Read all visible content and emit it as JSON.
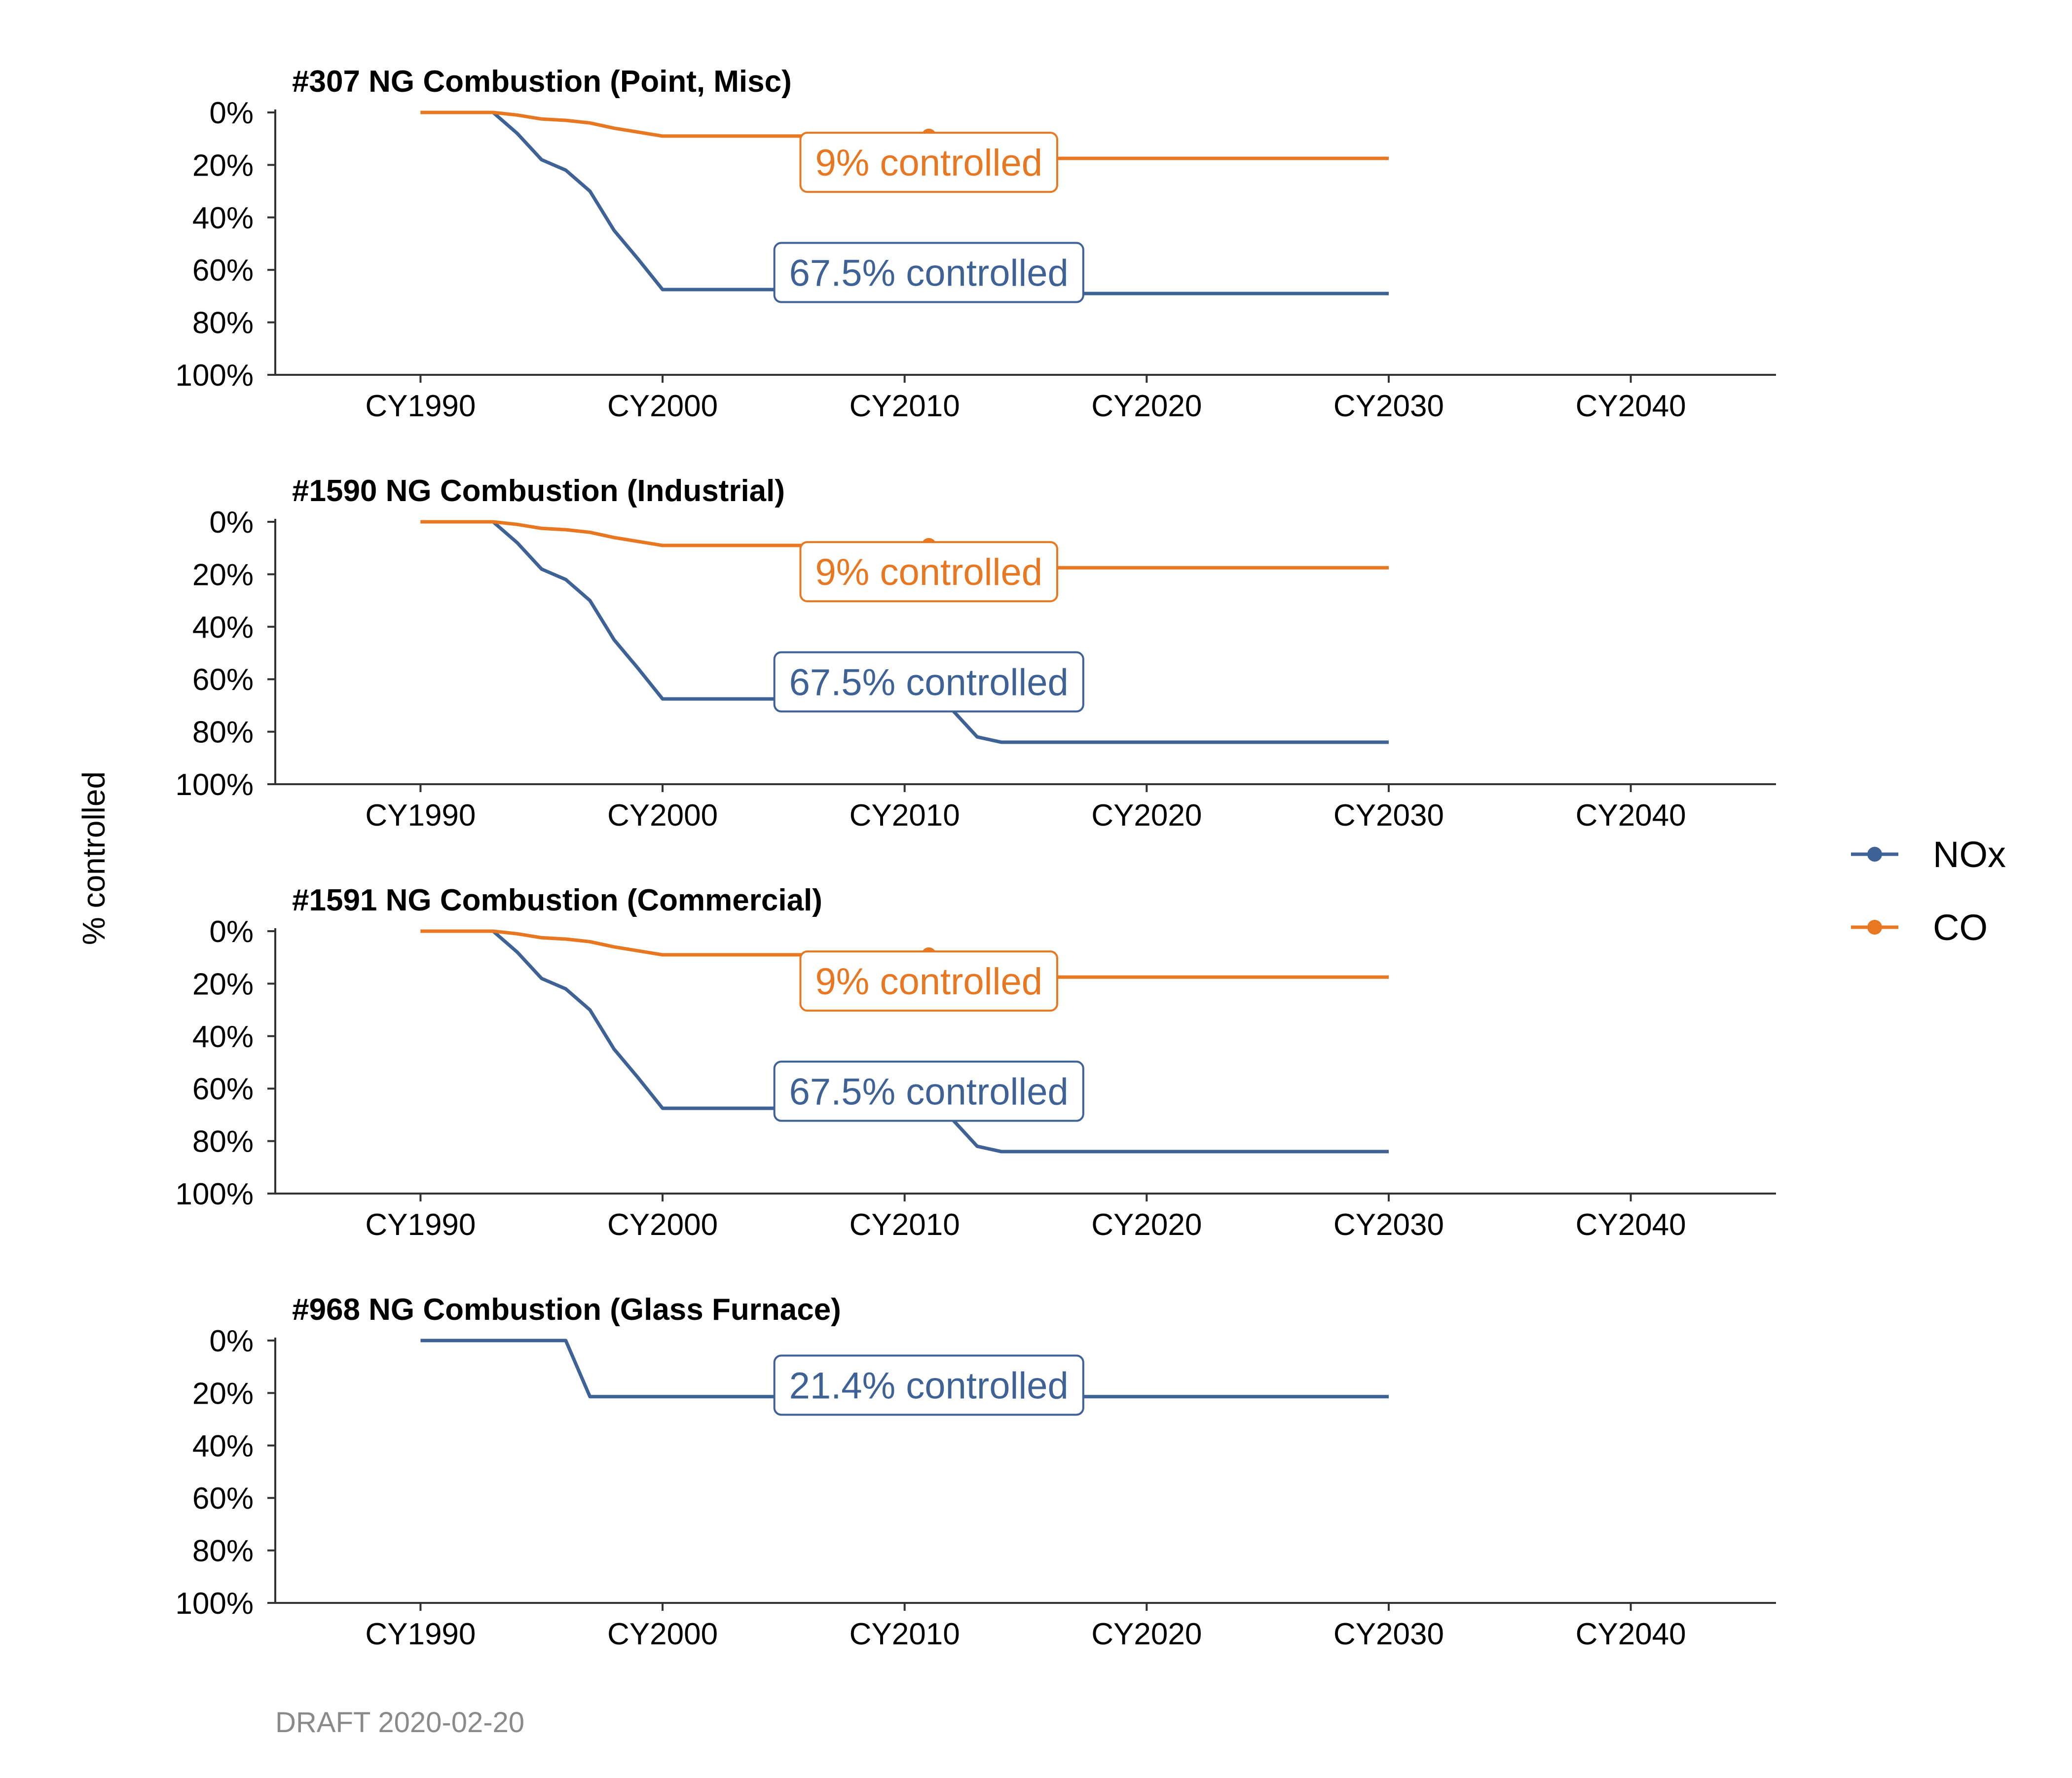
{
  "y_axis_label": "% controlled",
  "footer": "DRAFT 2020-02-20",
  "colors": {
    "NOx": "#3F6296",
    "CO": "#E87722"
  },
  "legend": {
    "position": "right",
    "items": [
      {
        "name": "NOx",
        "color": "#3F6296"
      },
      {
        "name": "CO",
        "color": "#E87722"
      }
    ]
  },
  "chart_data": [
    {
      "type": "line",
      "title": "#307 NG Combustion (Point, Misc)",
      "xlabel": "",
      "ylabel": "% controlled",
      "xlim": [
        1984,
        2046
      ],
      "ylim": [
        0,
        100
      ],
      "y_reversed": true,
      "x_ticks": [
        1990,
        2000,
        2010,
        2020,
        2030,
        2040
      ],
      "x_tick_labels": [
        "CY1990",
        "CY2000",
        "CY2010",
        "CY2020",
        "CY2030",
        "CY2040"
      ],
      "y_ticks": [
        0,
        20,
        40,
        60,
        80,
        100
      ],
      "y_tick_labels": [
        "0%",
        "20%",
        "40%",
        "60%",
        "80%",
        "100%"
      ],
      "series": [
        {
          "name": "NOx",
          "x": [
            1990,
            1993,
            1994,
            1995,
            1996,
            1997,
            1998,
            1999,
            2000,
            2011,
            2012,
            2030
          ],
          "y": [
            0,
            0,
            8,
            18,
            22,
            30,
            45,
            56,
            67.5,
            67.5,
            69,
            69
          ]
        },
        {
          "name": "CO",
          "x": [
            1990,
            1993,
            1994,
            1995,
            1996,
            1997,
            1998,
            1999,
            2000,
            2011,
            2012,
            2030
          ],
          "y": [
            0,
            0,
            1,
            2.5,
            3,
            4,
            6,
            7.5,
            9,
            9,
            17.5,
            17.5
          ]
        }
      ],
      "markers": [
        {
          "series": "CO",
          "x": 2011,
          "y": 9
        }
      ],
      "annotations": [
        {
          "series": "CO",
          "text": "9% controlled",
          "x": 2011,
          "y": 19
        },
        {
          "series": "NOx",
          "text": "67.5% controlled",
          "x": 2011,
          "y": 61
        }
      ]
    },
    {
      "type": "line",
      "title": "#1590 NG Combustion (Industrial)",
      "xlabel": "",
      "ylabel": "% controlled",
      "xlim": [
        1984,
        2046
      ],
      "ylim": [
        0,
        100
      ],
      "y_reversed": true,
      "x_ticks": [
        1990,
        2000,
        2010,
        2020,
        2030,
        2040
      ],
      "x_tick_labels": [
        "CY1990",
        "CY2000",
        "CY2010",
        "CY2020",
        "CY2030",
        "CY2040"
      ],
      "y_ticks": [
        0,
        20,
        40,
        60,
        80,
        100
      ],
      "y_tick_labels": [
        "0%",
        "20%",
        "40%",
        "60%",
        "80%",
        "100%"
      ],
      "series": [
        {
          "name": "NOx",
          "x": [
            1990,
            1993,
            1994,
            1995,
            1996,
            1997,
            1998,
            1999,
            2000,
            2011,
            2012,
            2013,
            2014,
            2030
          ],
          "y": [
            0,
            0,
            8,
            18,
            22,
            30,
            45,
            56,
            67.5,
            67.5,
            72,
            82,
            84,
            84
          ]
        },
        {
          "name": "CO",
          "x": [
            1990,
            1993,
            1994,
            1995,
            1996,
            1997,
            1998,
            1999,
            2000,
            2011,
            2012,
            2030
          ],
          "y": [
            0,
            0,
            1,
            2.5,
            3,
            4,
            6,
            7.5,
            9,
            9,
            17.5,
            17.5
          ]
        }
      ],
      "markers": [
        {
          "series": "CO",
          "x": 2011,
          "y": 9
        }
      ],
      "annotations": [
        {
          "series": "CO",
          "text": "9% controlled",
          "x": 2011,
          "y": 19
        },
        {
          "series": "NOx",
          "text": "67.5% controlled",
          "x": 2011,
          "y": 61
        }
      ]
    },
    {
      "type": "line",
      "title": "#1591 NG Combustion (Commercial)",
      "xlabel": "",
      "ylabel": "% controlled",
      "xlim": [
        1984,
        2046
      ],
      "ylim": [
        0,
        100
      ],
      "y_reversed": true,
      "x_ticks": [
        1990,
        2000,
        2010,
        2020,
        2030,
        2040
      ],
      "x_tick_labels": [
        "CY1990",
        "CY2000",
        "CY2010",
        "CY2020",
        "CY2030",
        "CY2040"
      ],
      "y_ticks": [
        0,
        20,
        40,
        60,
        80,
        100
      ],
      "y_tick_labels": [
        "0%",
        "20%",
        "40%",
        "60%",
        "80%",
        "100%"
      ],
      "series": [
        {
          "name": "NOx",
          "x": [
            1990,
            1993,
            1994,
            1995,
            1996,
            1997,
            1998,
            1999,
            2000,
            2011,
            2012,
            2013,
            2014,
            2030
          ],
          "y": [
            0,
            0,
            8,
            18,
            22,
            30,
            45,
            56,
            67.5,
            67.5,
            72,
            82,
            84,
            84
          ]
        },
        {
          "name": "CO",
          "x": [
            1990,
            1993,
            1994,
            1995,
            1996,
            1997,
            1998,
            1999,
            2000,
            2011,
            2012,
            2030
          ],
          "y": [
            0,
            0,
            1,
            2.5,
            3,
            4,
            6,
            7.5,
            9,
            9,
            17.5,
            17.5
          ]
        }
      ],
      "markers": [
        {
          "series": "CO",
          "x": 2011,
          "y": 9
        }
      ],
      "annotations": [
        {
          "series": "CO",
          "text": "9% controlled",
          "x": 2011,
          "y": 19
        },
        {
          "series": "NOx",
          "text": "67.5% controlled",
          "x": 2011,
          "y": 61
        }
      ]
    },
    {
      "type": "line",
      "title": "#968 NG Combustion (Glass Furnace)",
      "xlabel": "",
      "ylabel": "% controlled",
      "xlim": [
        1984,
        2046
      ],
      "ylim": [
        0,
        100
      ],
      "y_reversed": true,
      "x_ticks": [
        1990,
        2000,
        2010,
        2020,
        2030,
        2040
      ],
      "x_tick_labels": [
        "CY1990",
        "CY2000",
        "CY2010",
        "CY2020",
        "CY2030",
        "CY2040"
      ],
      "y_ticks": [
        0,
        20,
        40,
        60,
        80,
        100
      ],
      "y_tick_labels": [
        "0%",
        "20%",
        "40%",
        "60%",
        "80%",
        "100%"
      ],
      "series": [
        {
          "name": "NOx",
          "x": [
            1990,
            1996,
            1997,
            2030
          ],
          "y": [
            0,
            0,
            21.4,
            21.4
          ]
        }
      ],
      "markers": [],
      "annotations": [
        {
          "series": "NOx",
          "text": "21.4% controlled",
          "x": 2011,
          "y": 17
        }
      ]
    }
  ]
}
